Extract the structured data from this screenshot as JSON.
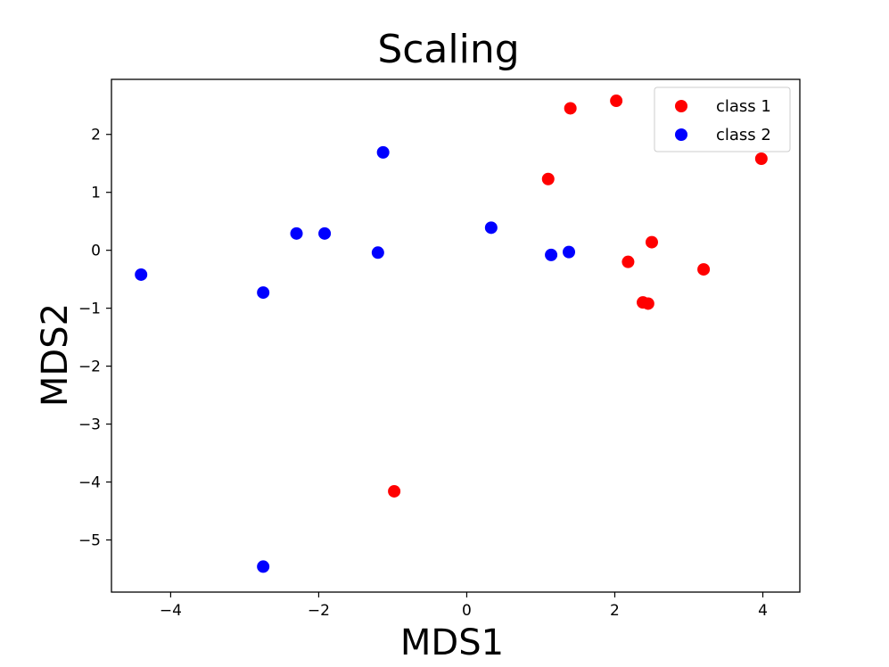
{
  "chart_data": {
    "type": "scatter",
    "title": "Scaling",
    "xlabel": "MDS1",
    "ylabel": "MDS2",
    "xlim": [
      -4.8,
      4.5
    ],
    "ylim": [
      -5.9,
      2.95
    ],
    "xticks": [
      -4,
      -2,
      0,
      2,
      4
    ],
    "xtick_labels": [
      "−4",
      "−2",
      "0",
      "2",
      "4"
    ],
    "yticks": [
      2,
      1,
      0,
      -1,
      -2,
      -3,
      -4,
      -5
    ],
    "ytick_labels": [
      "2",
      "1",
      "0",
      "−1",
      "−2",
      "−3",
      "−4",
      "−5"
    ],
    "grid": false,
    "legend_position": "top-right",
    "series": [
      {
        "name": "class 1",
        "color": "#ff0000",
        "points": [
          [
            1.4,
            2.45
          ],
          [
            2.02,
            2.58
          ],
          [
            3.98,
            1.58
          ],
          [
            1.1,
            1.23
          ],
          [
            2.5,
            0.14
          ],
          [
            2.18,
            -0.2
          ],
          [
            3.2,
            -0.33
          ],
          [
            2.38,
            -0.9
          ],
          [
            2.45,
            -0.92
          ],
          [
            -0.98,
            -4.16
          ]
        ]
      },
      {
        "name": "class 2",
        "color": "#0000ff",
        "points": [
          [
            -1.13,
            1.69
          ],
          [
            -2.3,
            0.29
          ],
          [
            -1.92,
            0.29
          ],
          [
            -1.2,
            -0.04
          ],
          [
            0.33,
            0.39
          ],
          [
            1.14,
            -0.08
          ],
          [
            1.38,
            -0.03
          ],
          [
            -4.4,
            -0.42
          ],
          [
            -2.75,
            -0.73
          ],
          [
            -2.75,
            -5.46
          ]
        ]
      }
    ]
  }
}
